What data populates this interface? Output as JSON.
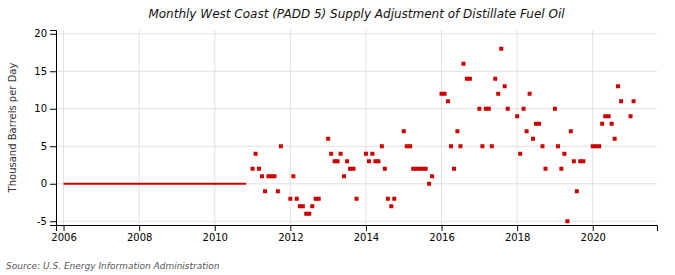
{
  "chart_data": {
    "type": "scatter",
    "title": "Monthly West Coast (PADD 5) Supply Adjustment of Distillate Fuel Oil",
    "y_label": "Thousand Barrels per Day",
    "source": "Source: U.S. Energy Information Administration",
    "xlim": [
      2005.8,
      2021.7
    ],
    "ylim": [
      -5.5,
      20.5
    ],
    "xticks": [
      2006,
      2008,
      2010,
      2012,
      2014,
      2016,
      2018,
      2020
    ],
    "yticks": [
      -5,
      0,
      5,
      10,
      15,
      20
    ],
    "grid": true,
    "series": [
      {
        "type": "line",
        "color": "#cc0000",
        "line_style": "solid",
        "x": [
          2006.0,
          2010.83
        ],
        "values": [
          0,
          0
        ]
      },
      {
        "type": "scatter",
        "color": "#cc0000",
        "marker": "square",
        "x": [
          2011.0,
          2011.08,
          2011.17,
          2011.25,
          2011.33,
          2011.42,
          2011.5,
          2011.58,
          2011.67,
          2011.75,
          2012.0,
          2012.08,
          2012.17,
          2012.25,
          2012.33,
          2012.42,
          2012.5,
          2012.58,
          2012.67,
          2012.75,
          2013.0,
          2013.08,
          2013.17,
          2013.25,
          2013.33,
          2013.42,
          2013.5,
          2013.58,
          2013.67,
          2013.75,
          2014.0,
          2014.08,
          2014.17,
          2014.25,
          2014.33,
          2014.42,
          2014.5,
          2014.58,
          2014.67,
          2014.75,
          2015.0,
          2015.08,
          2015.17,
          2015.25,
          2015.33,
          2015.42,
          2015.5,
          2015.58,
          2015.67,
          2015.75,
          2016.0,
          2016.08,
          2016.17,
          2016.25,
          2016.33,
          2016.42,
          2016.5,
          2016.58,
          2016.67,
          2016.75,
          2017.0,
          2017.08,
          2017.17,
          2017.25,
          2017.33,
          2017.42,
          2017.5,
          2017.58,
          2017.67,
          2017.75,
          2018.0,
          2018.08,
          2018.17,
          2018.25,
          2018.33,
          2018.42,
          2018.5,
          2018.58,
          2018.67,
          2018.75,
          2019.0,
          2019.08,
          2019.17,
          2019.25,
          2019.33,
          2019.42,
          2019.5,
          2019.58,
          2019.67,
          2019.75,
          2020.0,
          2020.08,
          2020.17,
          2020.25,
          2020.33,
          2020.42,
          2020.5,
          2020.58,
          2020.67,
          2020.75,
          2021.0,
          2021.08
        ],
        "values": [
          2,
          4,
          2,
          1,
          -1,
          1,
          1,
          1,
          -1,
          5,
          -2,
          1,
          -2,
          -3,
          -3,
          -4,
          -4,
          -3,
          -2,
          -2,
          6,
          4,
          3,
          3,
          4,
          1,
          3,
          2,
          2,
          -2,
          4,
          3,
          4,
          3,
          3,
          5,
          2,
          -2,
          -3,
          -2,
          7,
          5,
          5,
          2,
          2,
          2,
          2,
          2,
          0,
          1,
          12,
          12,
          11,
          5,
          2,
          7,
          5,
          16,
          14,
          14,
          10,
          5,
          10,
          10,
          5,
          14,
          12,
          18,
          13,
          10,
          9,
          4,
          10,
          7,
          12,
          6,
          8,
          8,
          5,
          2,
          10,
          5,
          2,
          4,
          -5,
          7,
          3,
          -1,
          3,
          3,
          5,
          5,
          5,
          8,
          9,
          9,
          8,
          6,
          13,
          11,
          9,
          11
        ]
      }
    ]
  }
}
